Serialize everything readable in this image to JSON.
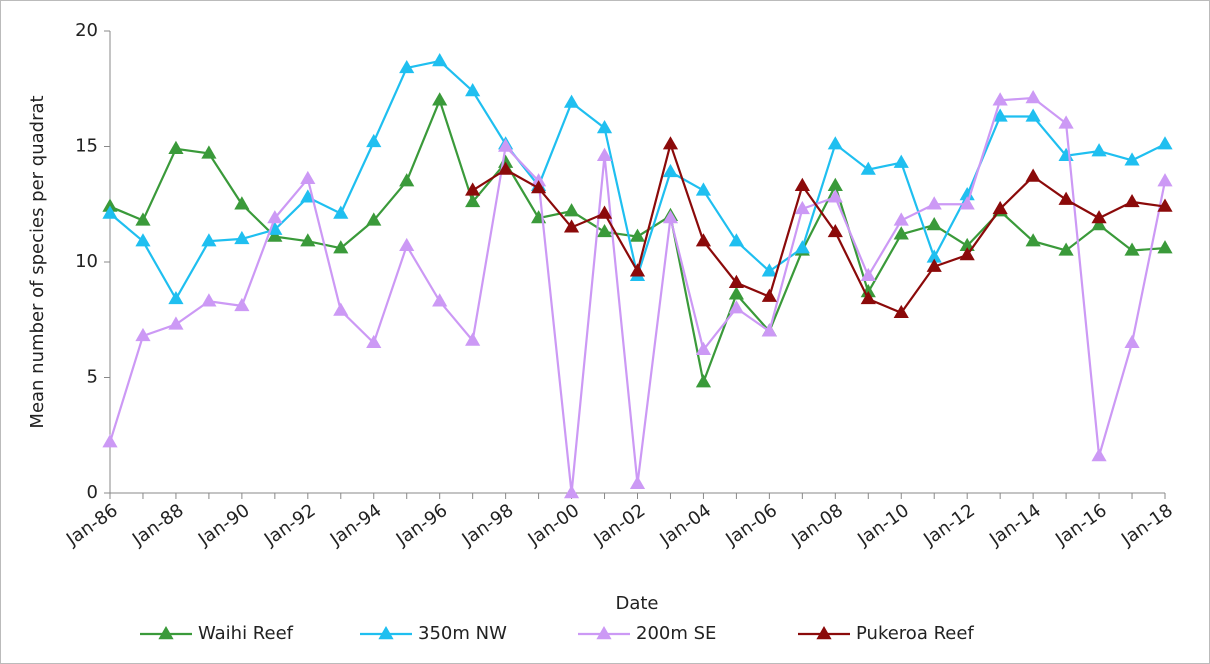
{
  "chart_data": {
    "type": "line",
    "ylabel": "Mean number of species per quadrat",
    "xlabel": "Date",
    "categories": [
      "Jan-86",
      null,
      "Jan-88",
      null,
      "Jan-90",
      null,
      "Jan-92",
      null,
      "Jan-94",
      null,
      "Jan-96",
      null,
      "Jan-98",
      null,
      "Jan-00",
      null,
      "Jan-02",
      null,
      "Jan-04",
      null,
      "Jan-06",
      null,
      "Jan-08",
      null,
      "Jan-10",
      null,
      "Jan-12",
      null,
      "Jan-14",
      null,
      "Jan-16",
      null,
      "Jan-18"
    ],
    "ylim": [
      0,
      20
    ],
    "yticks": [
      0,
      5,
      10,
      15,
      20
    ],
    "legend": "bottom",
    "series": [
      {
        "name": "Waihi Reef",
        "color": "#3a9a3a",
        "values": [
          12.4,
          11.8,
          14.9,
          14.7,
          12.5,
          11.1,
          10.9,
          10.6,
          11.8,
          13.5,
          17.0,
          12.6,
          14.3,
          11.9,
          12.2,
          11.3,
          11.1,
          12.0,
          4.8,
          8.6,
          7.0,
          10.5,
          13.3,
          8.7,
          11.2,
          11.6,
          10.7,
          12.2,
          10.9,
          10.5,
          11.6,
          10.5,
          10.6
        ]
      },
      {
        "name": "350m NW",
        "color": "#1fbff0",
        "values": [
          12.1,
          10.9,
          8.4,
          10.9,
          11.0,
          11.4,
          12.8,
          12.1,
          15.2,
          18.4,
          18.7,
          17.4,
          15.1,
          13.3,
          16.9,
          15.8,
          9.4,
          13.9,
          13.1,
          10.9,
          9.6,
          10.6,
          15.1,
          14.0,
          14.3,
          10.2,
          12.9,
          16.3,
          16.3,
          14.6,
          14.8,
          14.4,
          15.1
        ]
      },
      {
        "name": "200m SE",
        "color": "#cc99f5",
        "values": [
          2.2,
          6.8,
          7.3,
          8.3,
          8.1,
          11.9,
          13.6,
          7.9,
          6.5,
          10.7,
          8.3,
          6.6,
          15.0,
          13.5,
          0,
          14.6,
          0.4,
          11.9,
          6.2,
          8.0,
          7.0,
          12.3,
          12.8,
          9.4,
          11.8,
          12.5,
          12.5,
          17.0,
          17.1,
          16.0,
          1.6,
          6.5,
          13.5
        ]
      },
      {
        "name": "Pukeroa Reef",
        "color": "#8b0a0a",
        "values": [
          null,
          null,
          null,
          null,
          null,
          null,
          null,
          null,
          null,
          null,
          null,
          13.1,
          14.0,
          13.2,
          11.5,
          12.1,
          9.6,
          15.1,
          10.9,
          9.1,
          8.5,
          13.3,
          11.3,
          8.4,
          7.8,
          9.8,
          10.3,
          12.3,
          13.7,
          12.7,
          11.9,
          12.6,
          12.4
        ]
      }
    ]
  }
}
